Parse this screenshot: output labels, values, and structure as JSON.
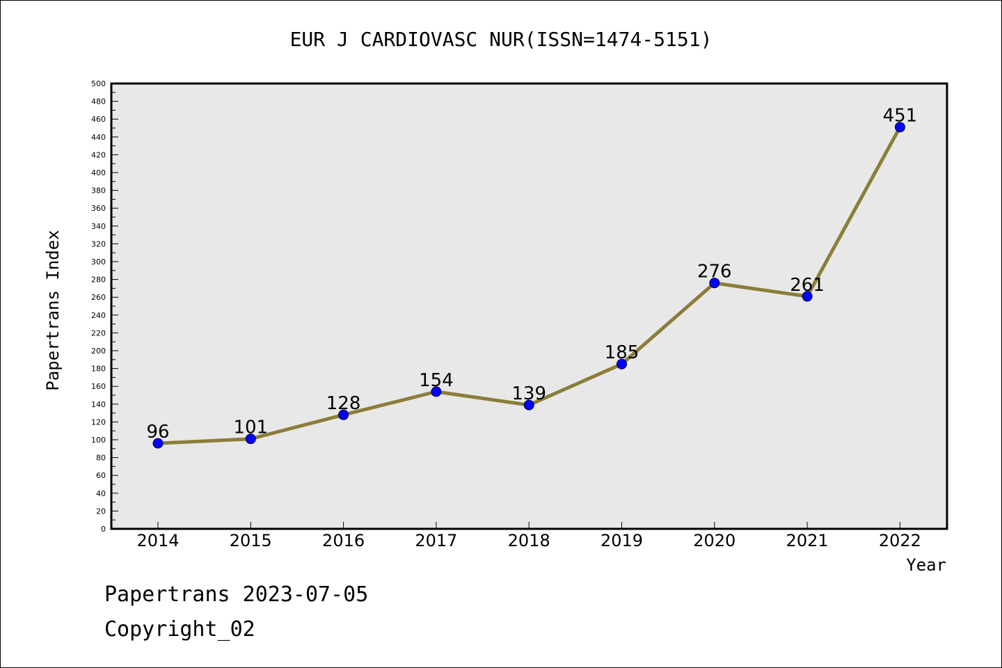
{
  "chart_data": {
    "type": "line",
    "title": "EUR J CARDIOVASC NUR(ISSN=1474-5151)",
    "xlabel": "Year",
    "ylabel": "Papertrans Index",
    "ylim": [
      0,
      500
    ],
    "y_ticks": [
      0,
      20,
      40,
      60,
      80,
      100,
      120,
      140,
      160,
      180,
      200,
      220,
      240,
      260,
      280,
      300,
      320,
      340,
      360,
      380,
      400,
      420,
      440,
      460,
      480,
      500
    ],
    "categories": [
      "2014",
      "2015",
      "2016",
      "2017",
      "2018",
      "2019",
      "2020",
      "2021",
      "2022"
    ],
    "values": [
      96,
      101,
      128,
      154,
      139,
      185,
      276,
      261,
      451
    ],
    "grid": false,
    "line_color": "#8b7d3a",
    "marker_color": "#0000ff",
    "plot_background": "#e8e8e8"
  },
  "footer": {
    "line1": "Papertrans 2023-07-05",
    "line2": "Copyright_02"
  }
}
